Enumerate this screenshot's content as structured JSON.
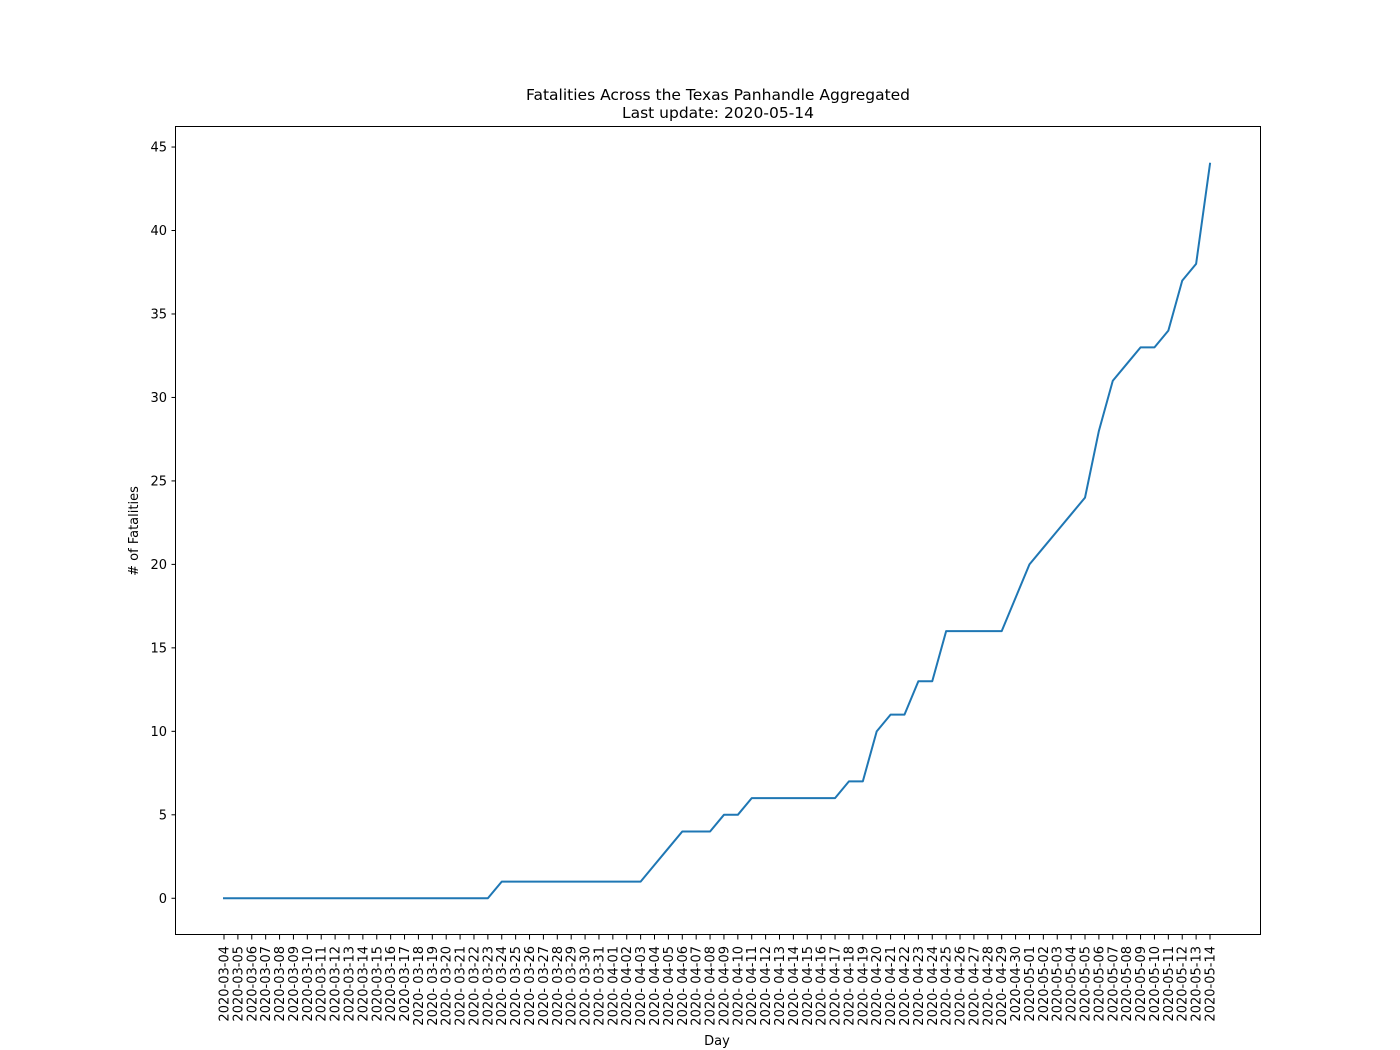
{
  "chart_data": {
    "type": "line",
    "title": "Fatalities Across the Texas Panhandle Aggregated",
    "subtitle": "Last update: 2020-05-14",
    "xlabel": "Day",
    "ylabel": "# of Fatalities",
    "ylim": [
      -2.2,
      46.2
    ],
    "yticks": [
      0,
      5,
      10,
      15,
      20,
      25,
      30,
      35,
      40,
      45
    ],
    "grid": false,
    "line_color": "#1f77b4",
    "x": [
      "2020-03-04",
      "2020-03-05",
      "2020-03-06",
      "2020-03-07",
      "2020-03-08",
      "2020-03-09",
      "2020-03-10",
      "2020-03-11",
      "2020-03-12",
      "2020-03-13",
      "2020-03-14",
      "2020-03-15",
      "2020-03-16",
      "2020-03-17",
      "2020-03-18",
      "2020-03-19",
      "2020-03-20",
      "2020-03-21",
      "2020-03-22",
      "2020-03-23",
      "2020-03-24",
      "2020-03-25",
      "2020-03-26",
      "2020-03-27",
      "2020-03-28",
      "2020-03-29",
      "2020-03-30",
      "2020-03-31",
      "2020-04-01",
      "2020-04-02",
      "2020-04-03",
      "2020-04-04",
      "2020-04-05",
      "2020-04-06",
      "2020-04-07",
      "2020-04-08",
      "2020-04-09",
      "2020-04-10",
      "2020-04-11",
      "2020-04-12",
      "2020-04-13",
      "2020-04-14",
      "2020-04-15",
      "2020-04-16",
      "2020-04-17",
      "2020-04-18",
      "2020-04-19",
      "2020-04-20",
      "2020-04-21",
      "2020-04-22",
      "2020-04-23",
      "2020-04-24",
      "2020-04-25",
      "2020-04-26",
      "2020-04-27",
      "2020-04-28",
      "2020-04-29",
      "2020-04-30",
      "2020-05-01",
      "2020-05-02",
      "2020-05-03",
      "2020-05-04",
      "2020-05-05",
      "2020-05-06",
      "2020-05-07",
      "2020-05-08",
      "2020-05-09",
      "2020-05-10",
      "2020-05-11",
      "2020-05-12",
      "2020-05-13",
      "2020-05-14"
    ],
    "xtick_labels": [
      "2020-03-04",
      "2020-03-05",
      "2020-03-06",
      "2020-03-07",
      "2020-03-08",
      "2020-03-09",
      "2020-03-10",
      "2020-03-11",
      "2020-03-12",
      "2020-03-13",
      "2020-03-14",
      "2020-03-15",
      "2020-03-16",
      "2020-03-17",
      "2020- 03-18",
      "2020- 03-19",
      "2020- 03-20",
      "2020- 03-21",
      "2020- 03-22",
      "2020- 03-23",
      "2020- 03-24",
      "2020- 03-25",
      "2020- 03-26",
      "2020- 03-27",
      "2020- 03-28",
      "2020- 03-29",
      "2020- 03-30",
      "2020- 03-31",
      "2020- 04-01",
      "2020- 04-02",
      "2020- 04-03",
      "2020- 04-04",
      "2020- 04-05",
      "2020- 04-06",
      "2020- 04-07",
      "2020- 04-08",
      "2020- 04-09",
      "2020- 04-10",
      "2020- 04-11",
      "2020- 04-12",
      "2020- 04-13",
      "2020- 04-14",
      "2020- 04-15",
      "2020- 04-16",
      "2020- 04-17",
      "2020- 04-18",
      "2020- 04-19",
      "2020- 04-20",
      "2020- 04-21",
      "2020- 04-22",
      "2020- 04-23",
      "2020- 04-24",
      "2020- 04-25",
      "2020- 04-26",
      "2020- 04-27",
      "2020- 04-28",
      "2020- 04-29",
      "2020-04-30",
      "2020-05-01",
      "2020-05-02",
      "2020-05-03",
      "2020-05-04",
      "2020-05-05",
      "2020-05-06",
      "2020-05-07",
      "2020-05-08",
      "2020-05-09",
      "2020-05-10",
      "2020-05-11",
      "2020-05-12",
      "2020-05-13",
      "2020-05-14"
    ],
    "series": [
      {
        "values": [
          0,
          0,
          0,
          0,
          0,
          0,
          0,
          0,
          0,
          0,
          0,
          0,
          0,
          0,
          0,
          0,
          0,
          0,
          0,
          0,
          1,
          1,
          1,
          1,
          1,
          1,
          1,
          1,
          1,
          1,
          1,
          2,
          3,
          4,
          4,
          4,
          5,
          5,
          6,
          6,
          6,
          6,
          6,
          6,
          6,
          7,
          7,
          10,
          11,
          11,
          13,
          13,
          16,
          16,
          16,
          16,
          16,
          18,
          20,
          21,
          22,
          23,
          24,
          28,
          31,
          32,
          33,
          33,
          34,
          37,
          38,
          44
        ]
      }
    ]
  }
}
